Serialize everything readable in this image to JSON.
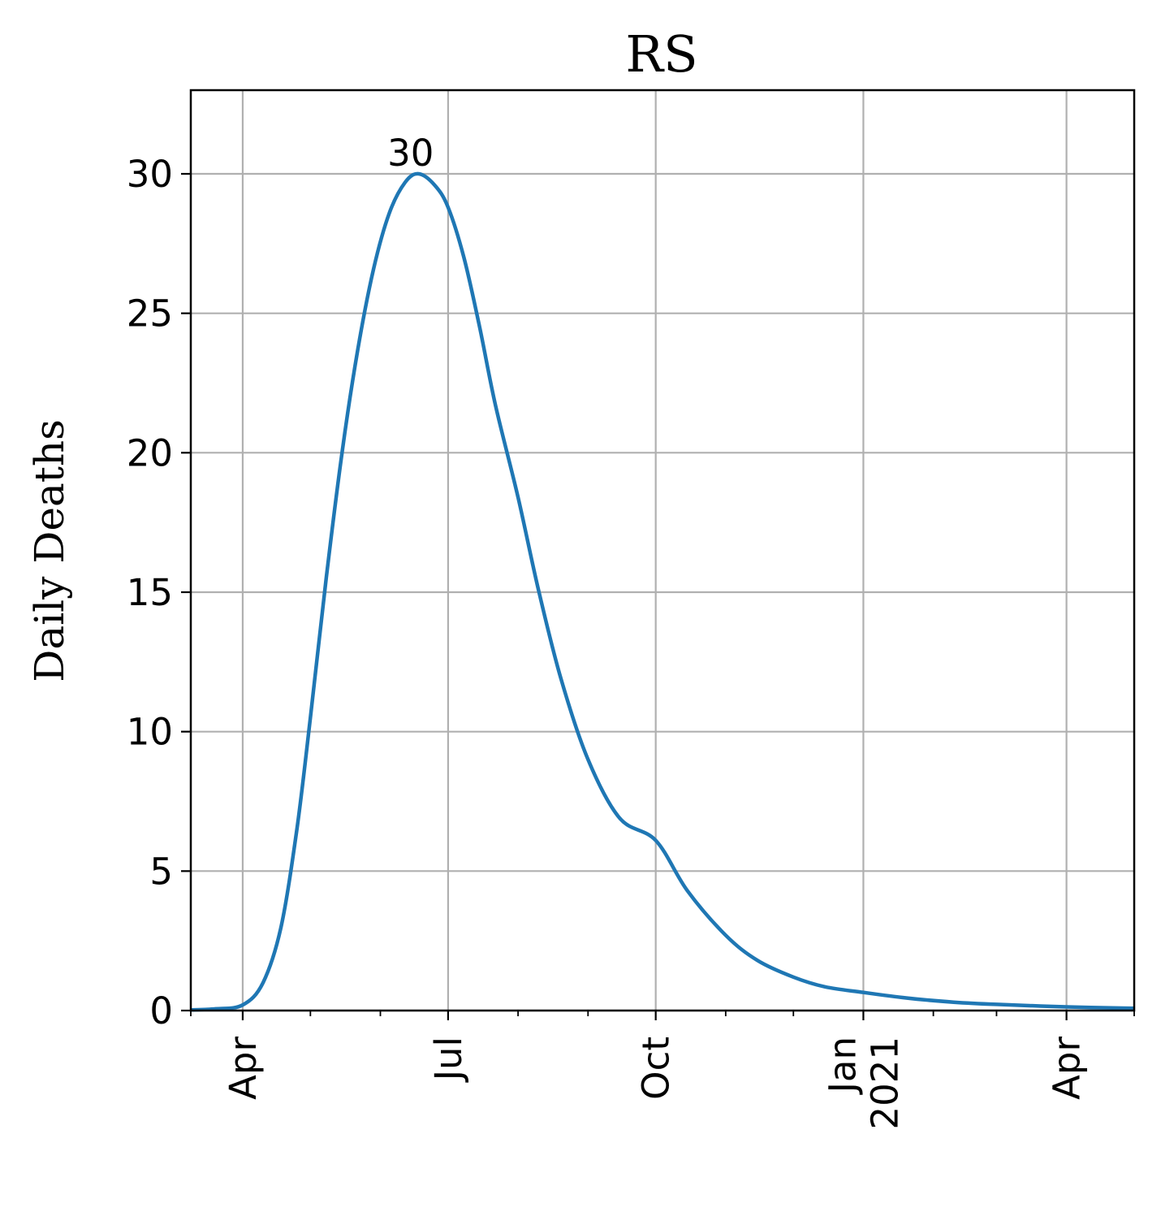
{
  "chart_data": {
    "type": "line",
    "title": "RS",
    "xlabel": "",
    "ylabel": "Daily Deaths",
    "x_axis": {
      "type": "date",
      "range": [
        "2020-03-09",
        "2021-05-01"
      ],
      "ticks": [
        {
          "date": "2020-04-01",
          "label": "Apr"
        },
        {
          "date": "2020-07-01",
          "label": "Jul"
        },
        {
          "date": "2020-10-01",
          "label": "Oct"
        },
        {
          "date": "2021-01-01",
          "label": "Jan\n2021"
        },
        {
          "date": "2021-04-01",
          "label": "Apr"
        }
      ],
      "minor_ticks": [
        "2020-03-09",
        "2020-05-01",
        "2020-06-01",
        "2020-08-01",
        "2020-09-01",
        "2020-11-01",
        "2020-12-01",
        "2021-02-01",
        "2021-03-01",
        "2021-05-01"
      ]
    },
    "ylim": [
      0,
      33
    ],
    "yticks": [
      0,
      5,
      10,
      15,
      20,
      25,
      30
    ],
    "grid": true,
    "series": [
      {
        "color": "#1f77b4",
        "points": [
          {
            "x": "2020-03-09",
            "y": 0.02
          },
          {
            "x": "2020-03-20",
            "y": 0.06
          },
          {
            "x": "2020-04-01",
            "y": 0.2
          },
          {
            "x": "2020-04-10",
            "y": 1.0
          },
          {
            "x": "2020-04-18",
            "y": 3.0
          },
          {
            "x": "2020-04-25",
            "y": 6.5
          },
          {
            "x": "2020-05-01",
            "y": 10.5
          },
          {
            "x": "2020-05-08",
            "y": 15.5
          },
          {
            "x": "2020-05-15",
            "y": 20.0
          },
          {
            "x": "2020-05-22",
            "y": 23.7
          },
          {
            "x": "2020-05-29",
            "y": 26.6
          },
          {
            "x": "2020-06-05",
            "y": 28.6
          },
          {
            "x": "2020-06-12",
            "y": 29.7
          },
          {
            "x": "2020-06-18",
            "y": 30.0
          },
          {
            "x": "2020-06-25",
            "y": 29.6
          },
          {
            "x": "2020-07-01",
            "y": 28.8
          },
          {
            "x": "2020-07-08",
            "y": 27.0
          },
          {
            "x": "2020-07-15",
            "y": 24.5
          },
          {
            "x": "2020-07-22",
            "y": 21.7
          },
          {
            "x": "2020-08-01",
            "y": 18.4
          },
          {
            "x": "2020-08-10",
            "y": 15.1
          },
          {
            "x": "2020-08-20",
            "y": 11.9
          },
          {
            "x": "2020-09-01",
            "y": 9.0
          },
          {
            "x": "2020-09-15",
            "y": 6.9
          },
          {
            "x": "2020-10-01",
            "y": 6.1
          },
          {
            "x": "2020-10-15",
            "y": 4.3
          },
          {
            "x": "2020-11-01",
            "y": 2.7
          },
          {
            "x": "2020-11-15",
            "y": 1.8
          },
          {
            "x": "2020-12-01",
            "y": 1.2
          },
          {
            "x": "2020-12-15",
            "y": 0.85
          },
          {
            "x": "2021-01-01",
            "y": 0.65
          },
          {
            "x": "2021-01-20",
            "y": 0.45
          },
          {
            "x": "2021-02-10",
            "y": 0.3
          },
          {
            "x": "2021-03-01",
            "y": 0.22
          },
          {
            "x": "2021-04-01",
            "y": 0.13
          },
          {
            "x": "2021-05-01",
            "y": 0.08
          }
        ]
      }
    ],
    "annotations": [
      {
        "text": "30",
        "x": "2020-06-18",
        "y": 30
      }
    ]
  }
}
